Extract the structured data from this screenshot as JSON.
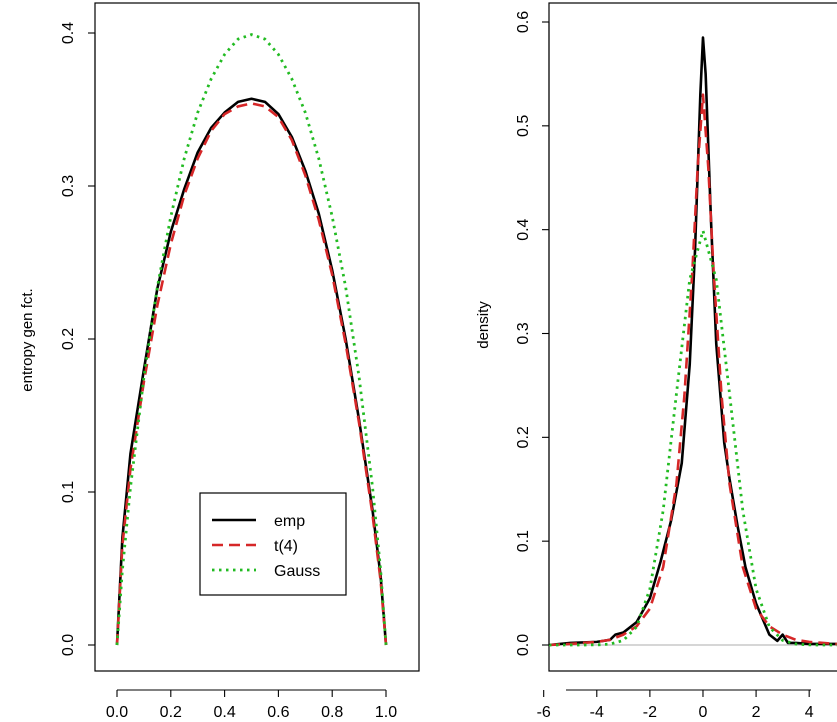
{
  "chart_data": [
    {
      "type": "line",
      "title": "",
      "xlabel": "",
      "ylabel": "entropy gen fct.",
      "xlim": [
        0,
        1
      ],
      "ylim": [
        0,
        0.4
      ],
      "x_ticks": [
        0.0,
        0.2,
        0.4,
        0.6,
        0.8,
        1.0
      ],
      "x_tick_labels": [
        "0.0",
        "0.2",
        "0.4",
        "0.6",
        "0.8",
        "1.0"
      ],
      "y_ticks": [
        0.0,
        0.1,
        0.2,
        0.3,
        0.4
      ],
      "y_tick_labels": [
        "0.0",
        "0.1",
        "0.2",
        "0.3",
        "0.4"
      ],
      "grid": false,
      "legend": {
        "position": "bottom-center",
        "entries": [
          {
            "label": "emp",
            "color": "#000000",
            "style": "solid"
          },
          {
            "label": "t(4)",
            "color": "#d62728",
            "style": "dashed"
          },
          {
            "label": "Gauss",
            "color": "#22bb22",
            "style": "dotted"
          }
        ]
      },
      "series": [
        {
          "name": "emp",
          "color": "#000000",
          "style": "solid",
          "x": [
            0.0,
            0.02,
            0.05,
            0.1,
            0.15,
            0.2,
            0.25,
            0.3,
            0.35,
            0.4,
            0.45,
            0.5,
            0.55,
            0.6,
            0.65,
            0.7,
            0.75,
            0.8,
            0.85,
            0.9,
            0.95,
            0.98,
            1.0
          ],
          "y": [
            0.0,
            0.07,
            0.125,
            0.18,
            0.233,
            0.27,
            0.298,
            0.322,
            0.338,
            0.348,
            0.355,
            0.357,
            0.355,
            0.347,
            0.332,
            0.31,
            0.282,
            0.245,
            0.2,
            0.147,
            0.088,
            0.045,
            0.0
          ]
        },
        {
          "name": "t(4)",
          "color": "#d62728",
          "style": "dashed",
          "x": [
            0.0,
            0.02,
            0.05,
            0.1,
            0.15,
            0.2,
            0.25,
            0.3,
            0.35,
            0.4,
            0.45,
            0.5,
            0.55,
            0.6,
            0.65,
            0.7,
            0.75,
            0.8,
            0.85,
            0.9,
            0.95,
            0.98,
            1.0
          ],
          "y": [
            0.0,
            0.065,
            0.115,
            0.172,
            0.222,
            0.262,
            0.294,
            0.318,
            0.336,
            0.347,
            0.352,
            0.354,
            0.352,
            0.345,
            0.33,
            0.307,
            0.278,
            0.242,
            0.197,
            0.145,
            0.085,
            0.042,
            0.0
          ]
        },
        {
          "name": "Gauss",
          "color": "#22bb22",
          "style": "dotted",
          "x": [
            0.0,
            0.02,
            0.05,
            0.1,
            0.15,
            0.2,
            0.25,
            0.3,
            0.35,
            0.4,
            0.45,
            0.5,
            0.55,
            0.6,
            0.65,
            0.7,
            0.75,
            0.8,
            0.85,
            0.9,
            0.95,
            0.98,
            1.0
          ],
          "y": [
            0.0,
            0.049,
            0.103,
            0.175,
            0.234,
            0.28,
            0.318,
            0.348,
            0.37,
            0.386,
            0.396,
            0.399,
            0.396,
            0.386,
            0.37,
            0.348,
            0.318,
            0.28,
            0.234,
            0.175,
            0.103,
            0.049,
            0.0
          ]
        }
      ]
    },
    {
      "type": "line",
      "title": "",
      "xlabel": "",
      "ylabel": "density",
      "xlim": [
        -5.8,
        5.5
      ],
      "ylim": [
        0,
        0.6
      ],
      "x_ticks": [
        -6,
        -4,
        -2,
        0,
        2,
        4
      ],
      "x_tick_labels": [
        "-6",
        "-4",
        "-2",
        "0",
        "2",
        "4"
      ],
      "y_ticks": [
        0.0,
        0.1,
        0.2,
        0.3,
        0.4,
        0.5,
        0.6
      ],
      "y_tick_labels": [
        "0.0",
        "0.1",
        "0.2",
        "0.3",
        "0.4",
        "0.5",
        "0.6"
      ],
      "grid": false,
      "baseline": 0,
      "series": [
        {
          "name": "emp",
          "color": "#000000",
          "style": "solid",
          "x": [
            -5.8,
            -5.0,
            -4.0,
            -3.5,
            -3.3,
            -3.0,
            -2.5,
            -2.0,
            -1.6,
            -1.2,
            -0.8,
            -0.5,
            -0.3,
            -0.1,
            0.0,
            0.1,
            0.3,
            0.5,
            0.8,
            1.0,
            1.3,
            1.6,
            2.0,
            2.5,
            2.8,
            3.0,
            3.2,
            3.5,
            4.0,
            4.5,
            5.0,
            5.5
          ],
          "y": [
            0.0,
            0.002,
            0.003,
            0.005,
            0.01,
            0.012,
            0.022,
            0.045,
            0.08,
            0.12,
            0.175,
            0.27,
            0.38,
            0.53,
            0.585,
            0.55,
            0.41,
            0.29,
            0.195,
            0.16,
            0.115,
            0.075,
            0.04,
            0.01,
            0.004,
            0.01,
            0.002,
            0.002,
            0.001,
            0.001,
            0.001,
            0.0
          ]
        },
        {
          "name": "t(4)",
          "color": "#d62728",
          "style": "dashed",
          "x": [
            -5.8,
            -5.0,
            -4.0,
            -3.5,
            -3.0,
            -2.5,
            -2.0,
            -1.5,
            -1.0,
            -0.7,
            -0.4,
            -0.2,
            0.0,
            0.2,
            0.4,
            0.7,
            1.0,
            1.5,
            2.0,
            2.5,
            3.0,
            3.5,
            4.0,
            5.0,
            5.5
          ],
          "y": [
            0.0,
            0.001,
            0.003,
            0.005,
            0.01,
            0.018,
            0.035,
            0.075,
            0.155,
            0.24,
            0.36,
            0.46,
            0.53,
            0.46,
            0.36,
            0.24,
            0.155,
            0.075,
            0.035,
            0.018,
            0.01,
            0.005,
            0.003,
            0.001,
            0.0
          ]
        },
        {
          "name": "Gauss",
          "color": "#22bb22",
          "style": "dotted",
          "x": [
            -5.8,
            -4.0,
            -3.5,
            -3.0,
            -2.5,
            -2.0,
            -1.5,
            -1.0,
            -0.5,
            0.0,
            0.5,
            1.0,
            1.5,
            2.0,
            2.5,
            3.0,
            3.5,
            4.0,
            5.5
          ],
          "y": [
            0.0,
            0.0001,
            0.0009,
            0.0044,
            0.0175,
            0.054,
            0.1295,
            0.242,
            0.352,
            0.399,
            0.352,
            0.242,
            0.1295,
            0.054,
            0.0175,
            0.0044,
            0.0009,
            0.0001,
            0.0
          ]
        }
      ]
    }
  ]
}
